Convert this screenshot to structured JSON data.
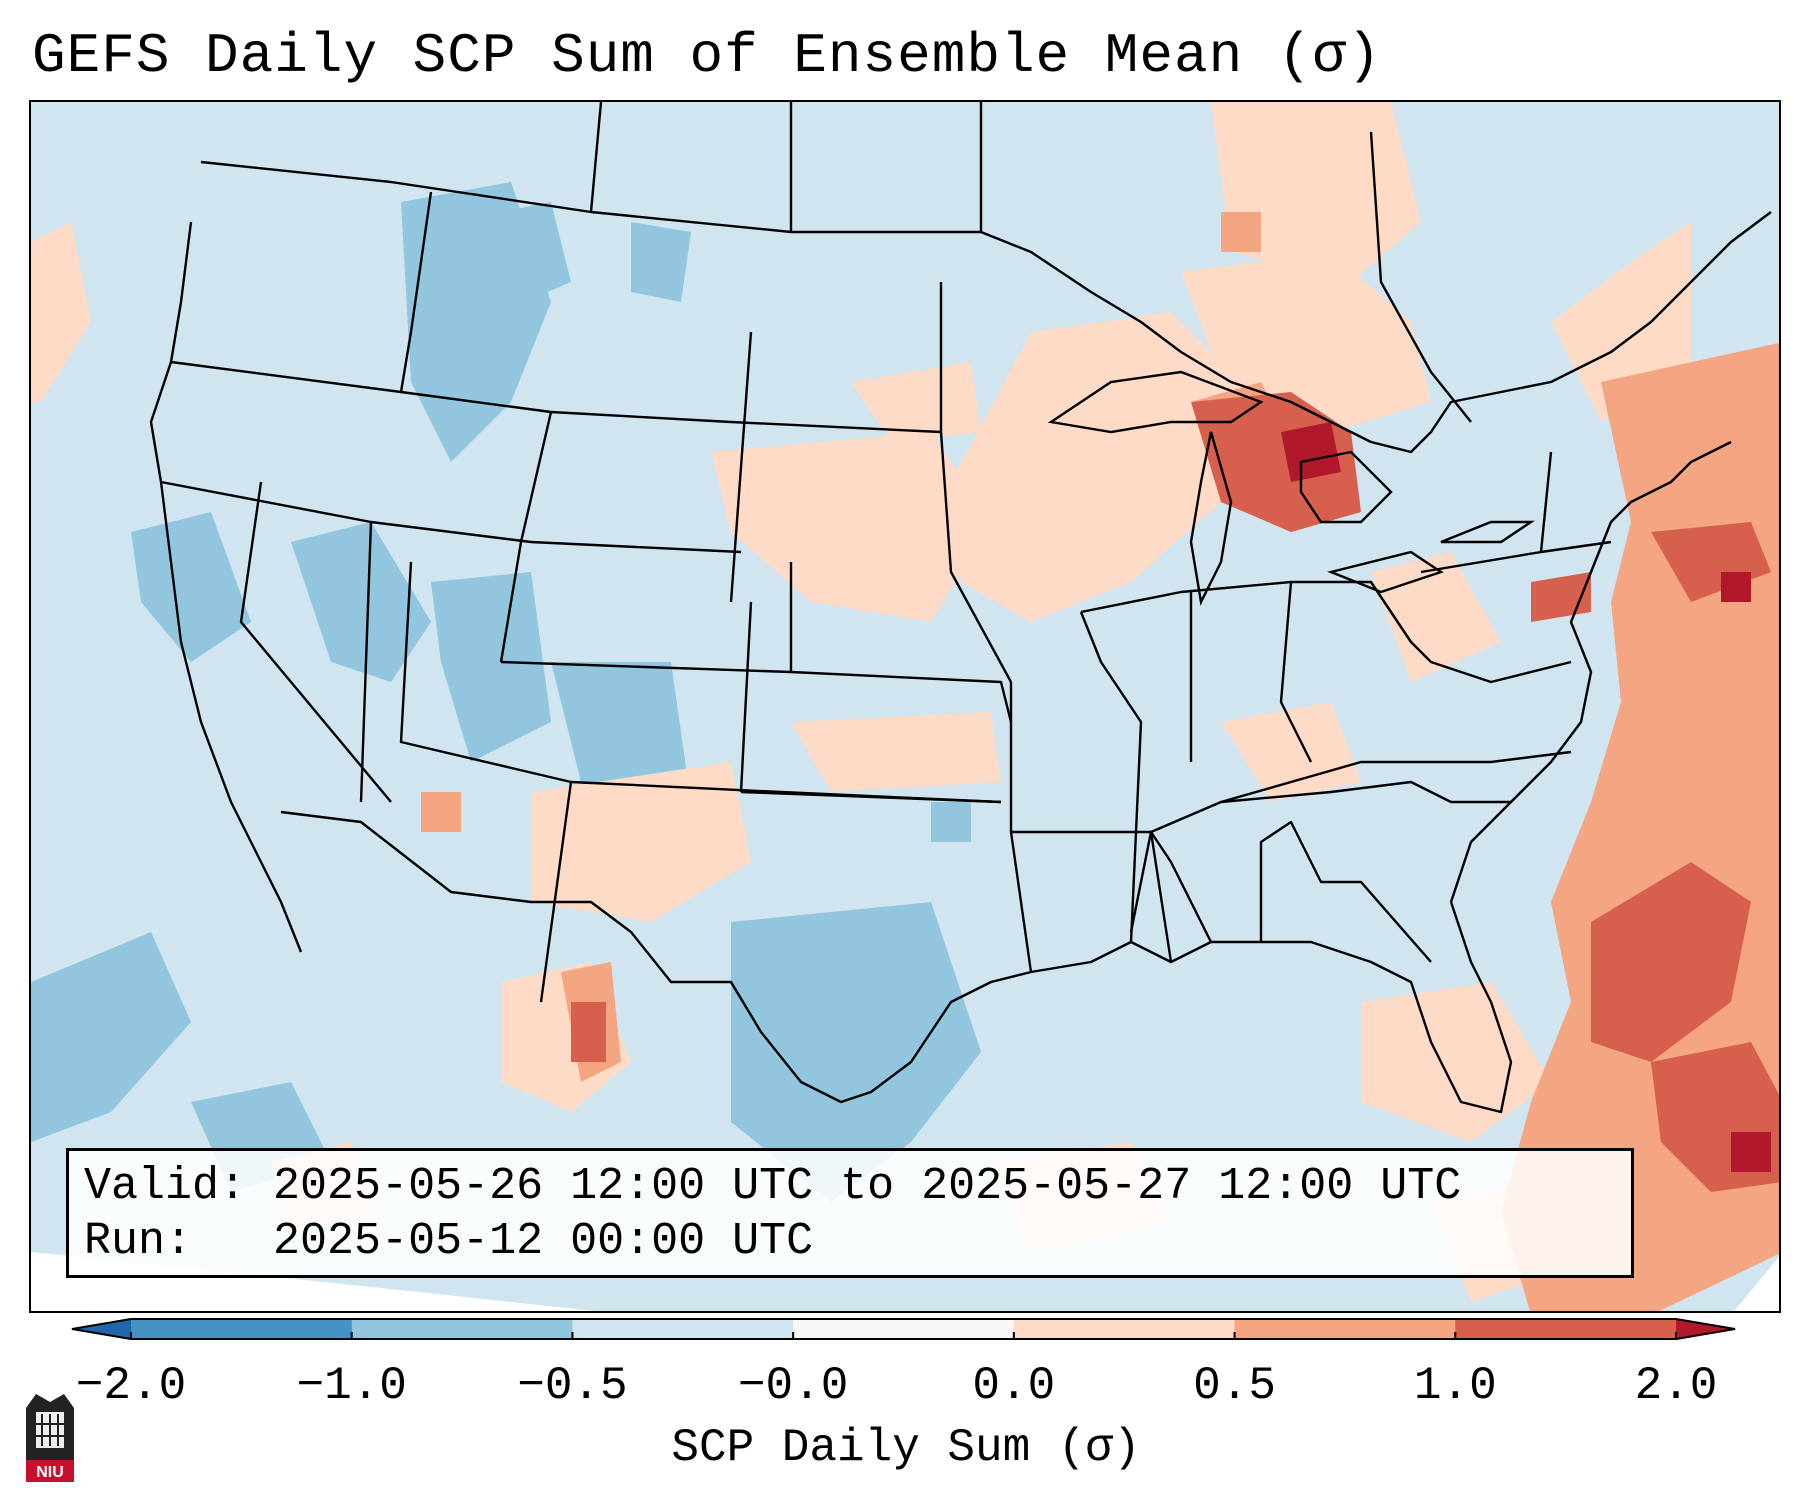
{
  "title": "GEFS Daily SCP Sum of Ensemble Mean (σ)",
  "info": {
    "valid_label": "Valid:",
    "valid_value": "2025-05-26 12:00 UTC to 2025-05-27 12:00 UTC",
    "run_label": "Run:",
    "run_value": "2025-05-12 00:00 UTC"
  },
  "colorbar": {
    "label": "SCP Daily Sum (σ)",
    "ticks": [
      "−2.0",
      "−1.0",
      "−0.5",
      "−0.0",
      "0.0",
      "0.5",
      "1.0",
      "2.0"
    ],
    "bins": [
      {
        "from": -2.0,
        "to": -1.0,
        "color": "#4592c7"
      },
      {
        "from": -1.0,
        "to": -0.5,
        "color": "#92c5de"
      },
      {
        "from": -0.5,
        "to": -0.0,
        "color": "#d1e5f0"
      },
      {
        "from": -0.0,
        "to": 0.0,
        "color": "#f7f7f7"
      },
      {
        "from": 0.0,
        "to": 0.5,
        "color": "#fddbc7"
      },
      {
        "from": 0.5,
        "to": 1.0,
        "color": "#f4a582"
      },
      {
        "from": 1.0,
        "to": 2.0,
        "color": "#d6604d"
      }
    ],
    "extend_low_color": "#2166ac",
    "extend_high_color": "#b2182b"
  },
  "map": {
    "region": "Contiguous United States",
    "background_color": "#d1e5f0",
    "anomaly_colors": {
      "strong_negative": "#92c5de",
      "weak_positive": "#fddbc7",
      "moderate_positive": "#f4a582",
      "strong_positive": "#d6604d",
      "extreme_positive": "#b2182b"
    }
  },
  "logo_text": "NIU"
}
